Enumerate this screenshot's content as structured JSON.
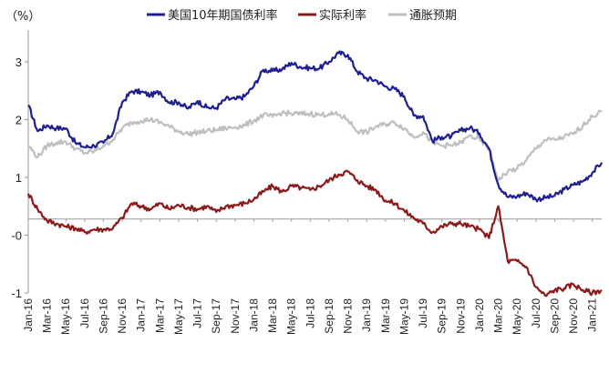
{
  "chart_data": {
    "type": "line",
    "unit_label": "（%）",
    "ylim": [
      -1,
      3.55
    ],
    "yticks": [
      {
        "value": -1,
        "label": "-1"
      },
      {
        "value": 0,
        "label": "-0"
      },
      {
        "value": 1,
        "label": "1"
      },
      {
        "value": 2,
        "label": "2"
      },
      {
        "value": 3,
        "label": "3"
      }
    ],
    "zero_line_value": 0.28,
    "x_start": "2016-01",
    "x_end": "2021-02",
    "x_labels": [
      "Jan-16",
      "Mar-16",
      "May-16",
      "Jul-16",
      "Sep-16",
      "Nov-16",
      "Jan-17",
      "Mar-17",
      "May-17",
      "Jul-17",
      "Sep-17",
      "Nov-17",
      "Jan-18",
      "Mar-18",
      "May-18",
      "Jul-18",
      "Sep-18",
      "Nov-18",
      "Jan-19",
      "Mar-19",
      "May-19",
      "Jul-19",
      "Sep-19",
      "Nov-19",
      "Jan-20",
      "Mar-20",
      "May-20",
      "Jul-20",
      "Sep-20",
      "Nov-20",
      "Jan-21"
    ],
    "legend": "top",
    "series": [
      {
        "name": "美国10年期国债利率",
        "color": "#1f1f8f",
        "points": [
          [
            "2016-01",
            2.25
          ],
          [
            "2016-02",
            1.8
          ],
          [
            "2016-03",
            1.9
          ],
          [
            "2016-04",
            1.85
          ],
          [
            "2016-05",
            1.85
          ],
          [
            "2016-06",
            1.6
          ],
          [
            "2016-07",
            1.52
          ],
          [
            "2016-08",
            1.55
          ],
          [
            "2016-09",
            1.6
          ],
          [
            "2016-10",
            1.76
          ],
          [
            "2016-11",
            2.3
          ],
          [
            "2016-12",
            2.49
          ],
          [
            "2017-01",
            2.48
          ],
          [
            "2017-02",
            2.42
          ],
          [
            "2017-03",
            2.48
          ],
          [
            "2017-04",
            2.3
          ],
          [
            "2017-05",
            2.3
          ],
          [
            "2017-06",
            2.19
          ],
          [
            "2017-07",
            2.32
          ],
          [
            "2017-08",
            2.21
          ],
          [
            "2017-09",
            2.2
          ],
          [
            "2017-10",
            2.36
          ],
          [
            "2017-11",
            2.35
          ],
          [
            "2017-12",
            2.4
          ],
          [
            "2018-01",
            2.58
          ],
          [
            "2018-02",
            2.86
          ],
          [
            "2018-03",
            2.84
          ],
          [
            "2018-04",
            2.87
          ],
          [
            "2018-05",
            2.98
          ],
          [
            "2018-06",
            2.91
          ],
          [
            "2018-07",
            2.89
          ],
          [
            "2018-08",
            2.89
          ],
          [
            "2018-09",
            3.0
          ],
          [
            "2018-10",
            3.15
          ],
          [
            "2018-11",
            3.12
          ],
          [
            "2018-12",
            2.83
          ],
          [
            "2019-01",
            2.71
          ],
          [
            "2019-02",
            2.68
          ],
          [
            "2019-03",
            2.57
          ],
          [
            "2019-04",
            2.53
          ],
          [
            "2019-05",
            2.4
          ],
          [
            "2019-06",
            2.07
          ],
          [
            "2019-07",
            2.06
          ],
          [
            "2019-08",
            1.63
          ],
          [
            "2019-09",
            1.7
          ],
          [
            "2019-10",
            1.71
          ],
          [
            "2019-11",
            1.81
          ],
          [
            "2019-12",
            1.86
          ],
          [
            "2020-01",
            1.76
          ],
          [
            "2020-02",
            1.5
          ],
          [
            "2020-03",
            0.87
          ],
          [
            "2020-04",
            0.66
          ],
          [
            "2020-05",
            0.67
          ],
          [
            "2020-06",
            0.73
          ],
          [
            "2020-07",
            0.62
          ],
          [
            "2020-08",
            0.65
          ],
          [
            "2020-09",
            0.68
          ],
          [
            "2020-10",
            0.79
          ],
          [
            "2020-11",
            0.87
          ],
          [
            "2020-12",
            0.93
          ],
          [
            "2021-01",
            1.08
          ],
          [
            "2021-02",
            1.26
          ]
        ]
      },
      {
        "name": "实际利率",
        "color": "#8b1a1a",
        "points": [
          [
            "2016-01",
            0.72
          ],
          [
            "2016-02",
            0.45
          ],
          [
            "2016-03",
            0.25
          ],
          [
            "2016-04",
            0.2
          ],
          [
            "2016-05",
            0.15
          ],
          [
            "2016-06",
            0.12
          ],
          [
            "2016-07",
            0.05
          ],
          [
            "2016-08",
            0.1
          ],
          [
            "2016-09",
            0.1
          ],
          [
            "2016-10",
            0.12
          ],
          [
            "2016-11",
            0.3
          ],
          [
            "2016-12",
            0.55
          ],
          [
            "2017-01",
            0.5
          ],
          [
            "2017-02",
            0.45
          ],
          [
            "2017-03",
            0.55
          ],
          [
            "2017-04",
            0.45
          ],
          [
            "2017-05",
            0.52
          ],
          [
            "2017-06",
            0.48
          ],
          [
            "2017-07",
            0.45
          ],
          [
            "2017-08",
            0.5
          ],
          [
            "2017-09",
            0.4
          ],
          [
            "2017-10",
            0.5
          ],
          [
            "2017-11",
            0.52
          ],
          [
            "2017-12",
            0.55
          ],
          [
            "2018-01",
            0.62
          ],
          [
            "2018-02",
            0.75
          ],
          [
            "2018-03",
            0.85
          ],
          [
            "2018-04",
            0.75
          ],
          [
            "2018-05",
            0.85
          ],
          [
            "2018-06",
            0.82
          ],
          [
            "2018-07",
            0.78
          ],
          [
            "2018-08",
            0.85
          ],
          [
            "2018-09",
            0.95
          ],
          [
            "2018-10",
            1.05
          ],
          [
            "2018-11",
            1.1
          ],
          [
            "2018-12",
            0.95
          ],
          [
            "2019-01",
            0.85
          ],
          [
            "2019-02",
            0.78
          ],
          [
            "2019-03",
            0.6
          ],
          [
            "2019-04",
            0.55
          ],
          [
            "2019-05",
            0.42
          ],
          [
            "2019-06",
            0.3
          ],
          [
            "2019-07",
            0.2
          ],
          [
            "2019-08",
            0.05
          ],
          [
            "2019-09",
            0.15
          ],
          [
            "2019-10",
            0.2
          ],
          [
            "2019-11",
            0.2
          ],
          [
            "2019-12",
            0.15
          ],
          [
            "2020-01",
            0.1
          ],
          [
            "2020-02",
            -0.05
          ],
          [
            "2020-03",
            0.5
          ],
          [
            "2020-04",
            -0.45
          ],
          [
            "2020-05",
            -0.45
          ],
          [
            "2020-06",
            -0.55
          ],
          [
            "2020-07",
            -0.9
          ],
          [
            "2020-08",
            -1.05
          ],
          [
            "2020-09",
            -0.95
          ],
          [
            "2020-10",
            -0.92
          ],
          [
            "2020-11",
            -0.85
          ],
          [
            "2020-12",
            -0.95
          ],
          [
            "2021-01",
            -1.0
          ],
          [
            "2021-02",
            -0.95
          ]
        ]
      },
      {
        "name": "通胀预期",
        "color": "#bfbfbf",
        "points": [
          [
            "2016-01",
            1.55
          ],
          [
            "2016-02",
            1.35
          ],
          [
            "2016-03",
            1.55
          ],
          [
            "2016-04",
            1.6
          ],
          [
            "2016-05",
            1.62
          ],
          [
            "2016-06",
            1.5
          ],
          [
            "2016-07",
            1.42
          ],
          [
            "2016-08",
            1.45
          ],
          [
            "2016-09",
            1.55
          ],
          [
            "2016-10",
            1.65
          ],
          [
            "2016-11",
            1.85
          ],
          [
            "2016-12",
            1.95
          ],
          [
            "2017-01",
            1.98
          ],
          [
            "2017-02",
            2.0
          ],
          [
            "2017-03",
            1.95
          ],
          [
            "2017-04",
            1.88
          ],
          [
            "2017-05",
            1.8
          ],
          [
            "2017-06",
            1.75
          ],
          [
            "2017-07",
            1.78
          ],
          [
            "2017-08",
            1.8
          ],
          [
            "2017-09",
            1.82
          ],
          [
            "2017-10",
            1.85
          ],
          [
            "2017-11",
            1.87
          ],
          [
            "2017-12",
            1.9
          ],
          [
            "2018-01",
            1.98
          ],
          [
            "2018-02",
            2.08
          ],
          [
            "2018-03",
            2.05
          ],
          [
            "2018-04",
            2.12
          ],
          [
            "2018-05",
            2.1
          ],
          [
            "2018-06",
            2.1
          ],
          [
            "2018-07",
            2.1
          ],
          [
            "2018-08",
            2.08
          ],
          [
            "2018-09",
            2.1
          ],
          [
            "2018-10",
            2.08
          ],
          [
            "2018-11",
            2.0
          ],
          [
            "2018-12",
            1.8
          ],
          [
            "2019-01",
            1.78
          ],
          [
            "2019-02",
            1.88
          ],
          [
            "2019-03",
            1.92
          ],
          [
            "2019-04",
            1.95
          ],
          [
            "2019-05",
            1.85
          ],
          [
            "2019-06",
            1.7
          ],
          [
            "2019-07",
            1.78
          ],
          [
            "2019-08",
            1.6
          ],
          [
            "2019-09",
            1.55
          ],
          [
            "2019-10",
            1.55
          ],
          [
            "2019-11",
            1.6
          ],
          [
            "2019-12",
            1.72
          ],
          [
            "2020-01",
            1.65
          ],
          [
            "2020-02",
            1.5
          ],
          [
            "2020-03",
            0.95
          ],
          [
            "2020-04",
            1.1
          ],
          [
            "2020-05",
            1.15
          ],
          [
            "2020-06",
            1.3
          ],
          [
            "2020-07",
            1.5
          ],
          [
            "2020-08",
            1.65
          ],
          [
            "2020-09",
            1.65
          ],
          [
            "2020-10",
            1.7
          ],
          [
            "2020-11",
            1.75
          ],
          [
            "2020-12",
            1.9
          ],
          [
            "2021-01",
            2.05
          ],
          [
            "2021-02",
            2.15
          ]
        ]
      }
    ]
  }
}
